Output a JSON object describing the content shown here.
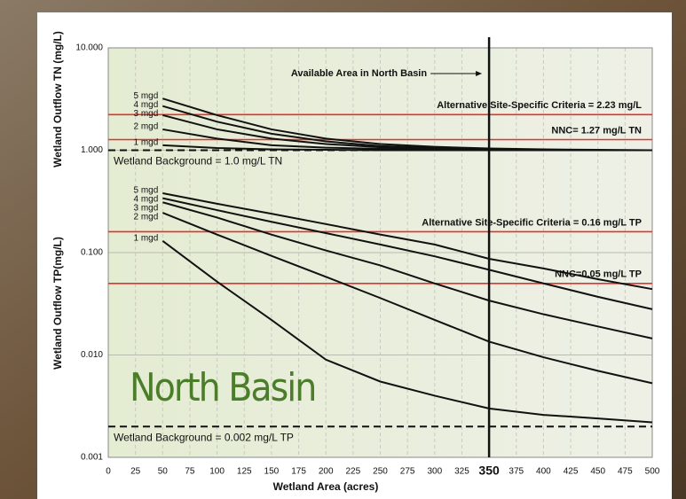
{
  "chart_data": {
    "type": "line",
    "x_label": "Wetland Area (acres)",
    "y_labels": [
      "Wetland Outflow TN (mg/L)",
      "Wetland Outflow TP(mg/L)"
    ],
    "annotation": "North Basin",
    "log_y": true,
    "grid": true,
    "xlim": [
      0,
      500
    ],
    "ylim": [
      0.001,
      10
    ],
    "xticks": [
      0,
      25,
      50,
      75,
      100,
      125,
      150,
      175,
      200,
      225,
      250,
      275,
      300,
      325,
      350,
      375,
      400,
      425,
      450,
      475,
      500
    ],
    "yticks": [
      {
        "value": 10,
        "label": "10.000"
      },
      {
        "value": 1,
        "label": "1.000"
      },
      {
        "value": 0.1,
        "label": "0.100"
      },
      {
        "value": 0.01,
        "label": "0.010"
      },
      {
        "value": 0.001,
        "label": "0.001"
      }
    ],
    "x": [
      50,
      100,
      150,
      200,
      250,
      300,
      350,
      400,
      450,
      500
    ],
    "series": [
      {
        "name": "5 mgd",
        "color": "#111111",
        "values": [
          3.2,
          2.2,
          1.6,
          1.3,
          1.15,
          1.08,
          1.04,
          1.02,
          1.01,
          1.0
        ]
      },
      {
        "name": "4 mgd",
        "color": "#111111",
        "values": [
          2.7,
          1.9,
          1.45,
          1.22,
          1.1,
          1.05,
          1.03,
          1.01,
          1.0,
          1.0
        ]
      },
      {
        "name": "3 mgd",
        "color": "#111111",
        "values": [
          2.2,
          1.6,
          1.3,
          1.15,
          1.07,
          1.03,
          1.02,
          1.01,
          1.0,
          1.0
        ]
      },
      {
        "name": "2 mgd",
        "color": "#111111",
        "values": [
          1.6,
          1.3,
          1.12,
          1.06,
          1.03,
          1.02,
          1.01,
          1.0,
          1.0,
          1.0
        ]
      },
      {
        "name": "1 mgd",
        "color": "#111111",
        "values": [
          1.12,
          1.05,
          1.02,
          1.01,
          1.0,
          1.0,
          1.0,
          1.0,
          1.0,
          1.0
        ]
      },
      {
        "name": "5 mgd",
        "color": "#111111",
        "values": [
          0.38,
          0.3,
          0.24,
          0.19,
          0.15,
          0.12,
          0.087,
          0.07,
          0.055,
          0.044
        ]
      },
      {
        "name": "4 mgd",
        "color": "#111111",
        "values": [
          0.34,
          0.26,
          0.2,
          0.155,
          0.12,
          0.092,
          0.068,
          0.05,
          0.037,
          0.028
        ]
      },
      {
        "name": "3 mgd",
        "color": "#111111",
        "values": [
          0.31,
          0.22,
          0.15,
          0.105,
          0.075,
          0.05,
          0.034,
          0.025,
          0.019,
          0.0145
        ]
      },
      {
        "name": "2 mgd",
        "color": "#111111",
        "values": [
          0.245,
          0.15,
          0.093,
          0.058,
          0.036,
          0.022,
          0.0135,
          0.0095,
          0.007,
          0.0053
        ]
      },
      {
        "name": "1 mgd",
        "color": "#111111",
        "values": [
          0.13,
          0.052,
          0.022,
          0.009,
          0.0055,
          0.004,
          0.003,
          0.0026,
          0.0024,
          0.0022
        ]
      }
    ],
    "reference_lines": [
      {
        "value": 2.23,
        "color": "#e8302a",
        "style": "solid",
        "label": "Alternative Site-Specific Criteria = 2.23 mg/L"
      },
      {
        "value": 1.27,
        "color": "#e8302a",
        "style": "solid",
        "label": "NNC= 1.27 mg/L TN"
      },
      {
        "value": 1.0,
        "color": "#111111",
        "style": "dashed",
        "label": "Wetland Background = 1.0 mg/L TN"
      },
      {
        "value": 0.16,
        "color": "#e8302a",
        "style": "solid",
        "label": "Alternative Site-Specific Criteria = 0.16 mg/L TP"
      },
      {
        "value": 0.05,
        "color": "#e8302a",
        "style": "solid",
        "label": "NNC=0.05 mg/L TP"
      },
      {
        "value": 0.002,
        "color": "#111111",
        "style": "dashed",
        "label": "Wetland Background = 0.002 mg/L TP"
      }
    ],
    "vline": {
      "value": 350,
      "label": "Available Area in North Basin"
    }
  }
}
